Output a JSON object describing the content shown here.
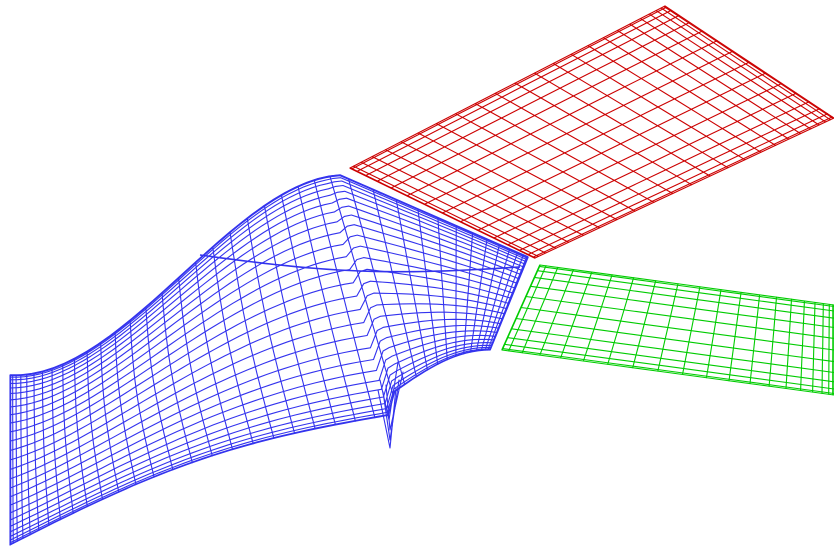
{
  "figure": {
    "background": "#ffffff",
    "blocks": [
      {
        "id": "blue-mesh-block",
        "color": "#3333ee"
      },
      {
        "id": "red-mesh-block",
        "color": "#cc0000"
      },
      {
        "id": "green-mesh-block",
        "color": "#00cc00"
      }
    ]
  }
}
